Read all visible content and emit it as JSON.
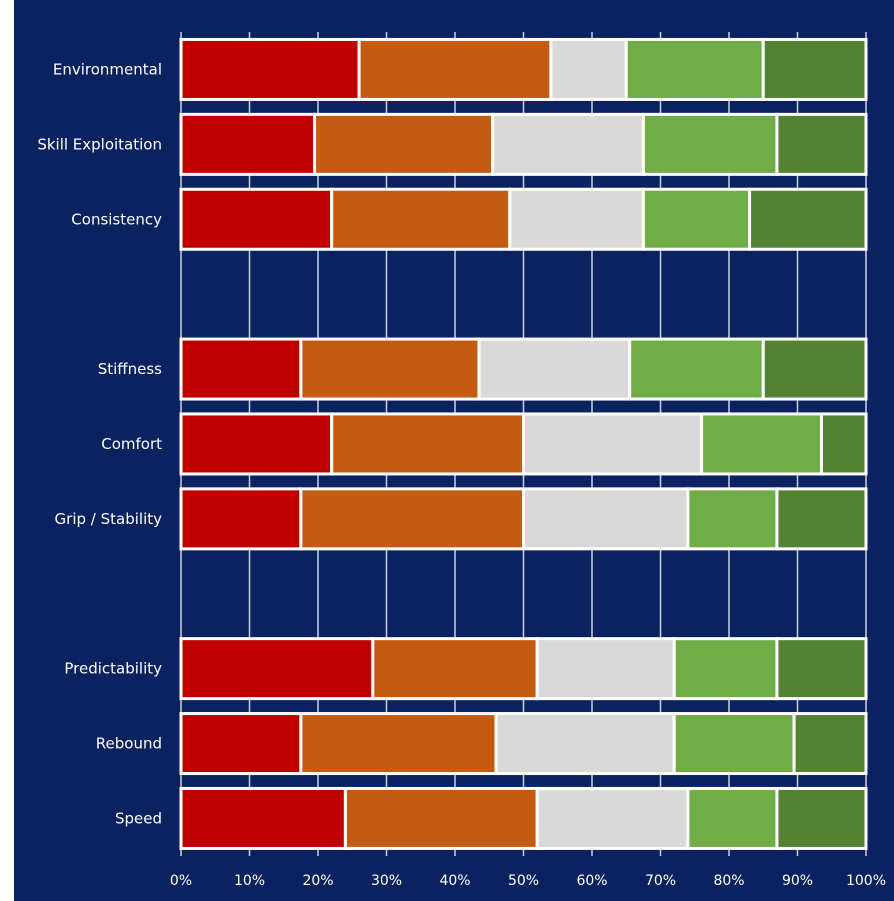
{
  "colors": {
    "background": "#0b2260",
    "grid": "#c9d1e6",
    "segment_border": "#ffffff",
    "segments": [
      "#c00000",
      "#c55a11",
      "#d9d9d9",
      "#70ad47",
      "#548235"
    ]
  },
  "chart_data": {
    "type": "bar",
    "orientation": "horizontal",
    "stacked": true,
    "normalized": true,
    "title": "",
    "xlabel": "",
    "ylabel": "",
    "xlim": [
      0,
      100
    ],
    "x_ticks": [
      "0%",
      "10%",
      "20%",
      "30%",
      "40%",
      "50%",
      "60%",
      "70%",
      "80%",
      "90%",
      "100%"
    ],
    "grid": true,
    "legend": "none",
    "categories": [
      "Environmental",
      "Skill Exploitation",
      "Consistency",
      "",
      "Stiffness",
      "Comfort",
      "Grip / Stability",
      "",
      "Predictability",
      "Rebound",
      "Speed"
    ],
    "segments": [
      [
        26,
        28,
        11,
        20,
        15
      ],
      [
        19.5,
        26,
        22,
        19.5,
        13
      ],
      [
        22,
        26,
        19.5,
        15.5,
        17
      ],
      null,
      [
        17.5,
        26,
        22,
        19.5,
        15
      ],
      [
        22,
        28,
        26,
        17.5,
        6.5
      ],
      [
        17.5,
        32.5,
        24,
        13,
        13
      ],
      null,
      [
        28,
        24,
        20,
        15,
        13
      ],
      [
        17.5,
        28.5,
        26,
        17.5,
        10.5
      ],
      [
        24,
        28,
        22,
        13,
        13
      ]
    ]
  }
}
